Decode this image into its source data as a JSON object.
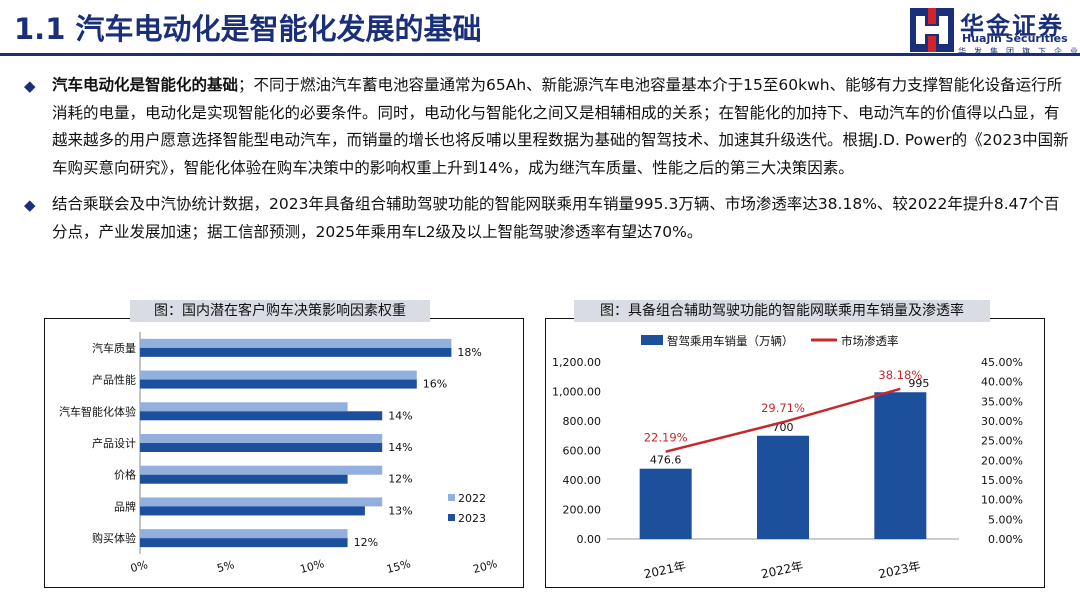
{
  "header": {
    "title": "1.1 汽车电动化是智能化发展的基础"
  },
  "logo": {
    "name_cn": "华金证券",
    "name_en": "Huajin Securities",
    "subtitle": "华发集团旗下企业"
  },
  "bullets": [
    {
      "bold": "汽车电动化是智能化的基础",
      "text": "；不同于燃油汽车蓄电池容量通常为65Ah、新能源汽车电池容量基本介于15至60kwh、能够有力支撑智能化设备运行所消耗的电量，电动化是实现智能化的必要条件。同时，电动化与智能化之间又是相辅相成的关系；在智能化的加持下、电动汽车的价值得以凸显，有越来越多的用户愿意选择智能型电动汽车，而销量的增长也将反哺以里程数据为基础的智驾技术、加速其升级迭代。根据J.D. Power的《2023中国新车购买意向研究》，智能化体验在购车决策中的影响权重上升到14%，成为继汽车质量、性能之后的第三大决策因素。"
    },
    {
      "bold": "",
      "text": "结合乘联会及中汽协统计数据，2023年具备组合辅助驾驶功能的智能网联乘用车销量995.3万辆、市场渗透率达38.18%、较2022年提升8.47个百分点，产业发展加速；据工信部预测，2025年乘用车L2级及以上智能驾驶渗透率有望达70%。"
    }
  ],
  "chart_data": [
    {
      "type": "bar",
      "orientation": "horizontal",
      "panel_title": "图：国内潜在客户购车决策影响因素权重",
      "categories": [
        "汽车质量",
        "产品性能",
        "汽车智能化体验",
        "产品设计",
        "价格",
        "品牌",
        "购买体验"
      ],
      "series": [
        {
          "name": "2022",
          "values": [
            18,
            16,
            12,
            14,
            14,
            14,
            12
          ],
          "color": "#92b0dd"
        },
        {
          "name": "2023",
          "values": [
            18,
            16,
            14,
            14,
            12,
            13,
            12
          ],
          "color": "#1c4f9c"
        }
      ],
      "data_labels": [
        "18%",
        "16%",
        "14%",
        "14%",
        "12%",
        "13%",
        "12%"
      ],
      "xlim": [
        0,
        20
      ],
      "xticks": [
        "0%",
        "5%",
        "10%",
        "15%",
        "20%"
      ],
      "legend": "bottom-right"
    },
    {
      "type": "bar+line",
      "panel_title": "图：具备组合辅助驾驶功能的智能网联乘用车销量及渗透率",
      "categories": [
        "2021年",
        "2022年",
        "2023年"
      ],
      "bar_series": {
        "name": "智驾乘用车销量（万辆）",
        "values": [
          476.6,
          700,
          995
        ],
        "labels": [
          "476.6",
          "700",
          "995"
        ],
        "color": "#1c4f9c"
      },
      "line_series": {
        "name": "市场渗透率",
        "values": [
          22.19,
          29.71,
          38.18
        ],
        "labels": [
          "22.19%",
          "29.71%",
          "38.18%"
        ],
        "color": "#c8282d"
      },
      "y_left": {
        "range": [
          0,
          1200
        ],
        "ticks": [
          "0.00",
          "200.00",
          "400.00",
          "600.00",
          "800.00",
          "1,000.00",
          "1,200.00"
        ]
      },
      "y_right": {
        "range": [
          0,
          45
        ],
        "ticks": [
          "0.00%",
          "5.00%",
          "10.00%",
          "15.00%",
          "20.00%",
          "25.00%",
          "30.00%",
          "35.00%",
          "40.00%",
          "45.00%"
        ]
      },
      "legend": "top"
    }
  ]
}
